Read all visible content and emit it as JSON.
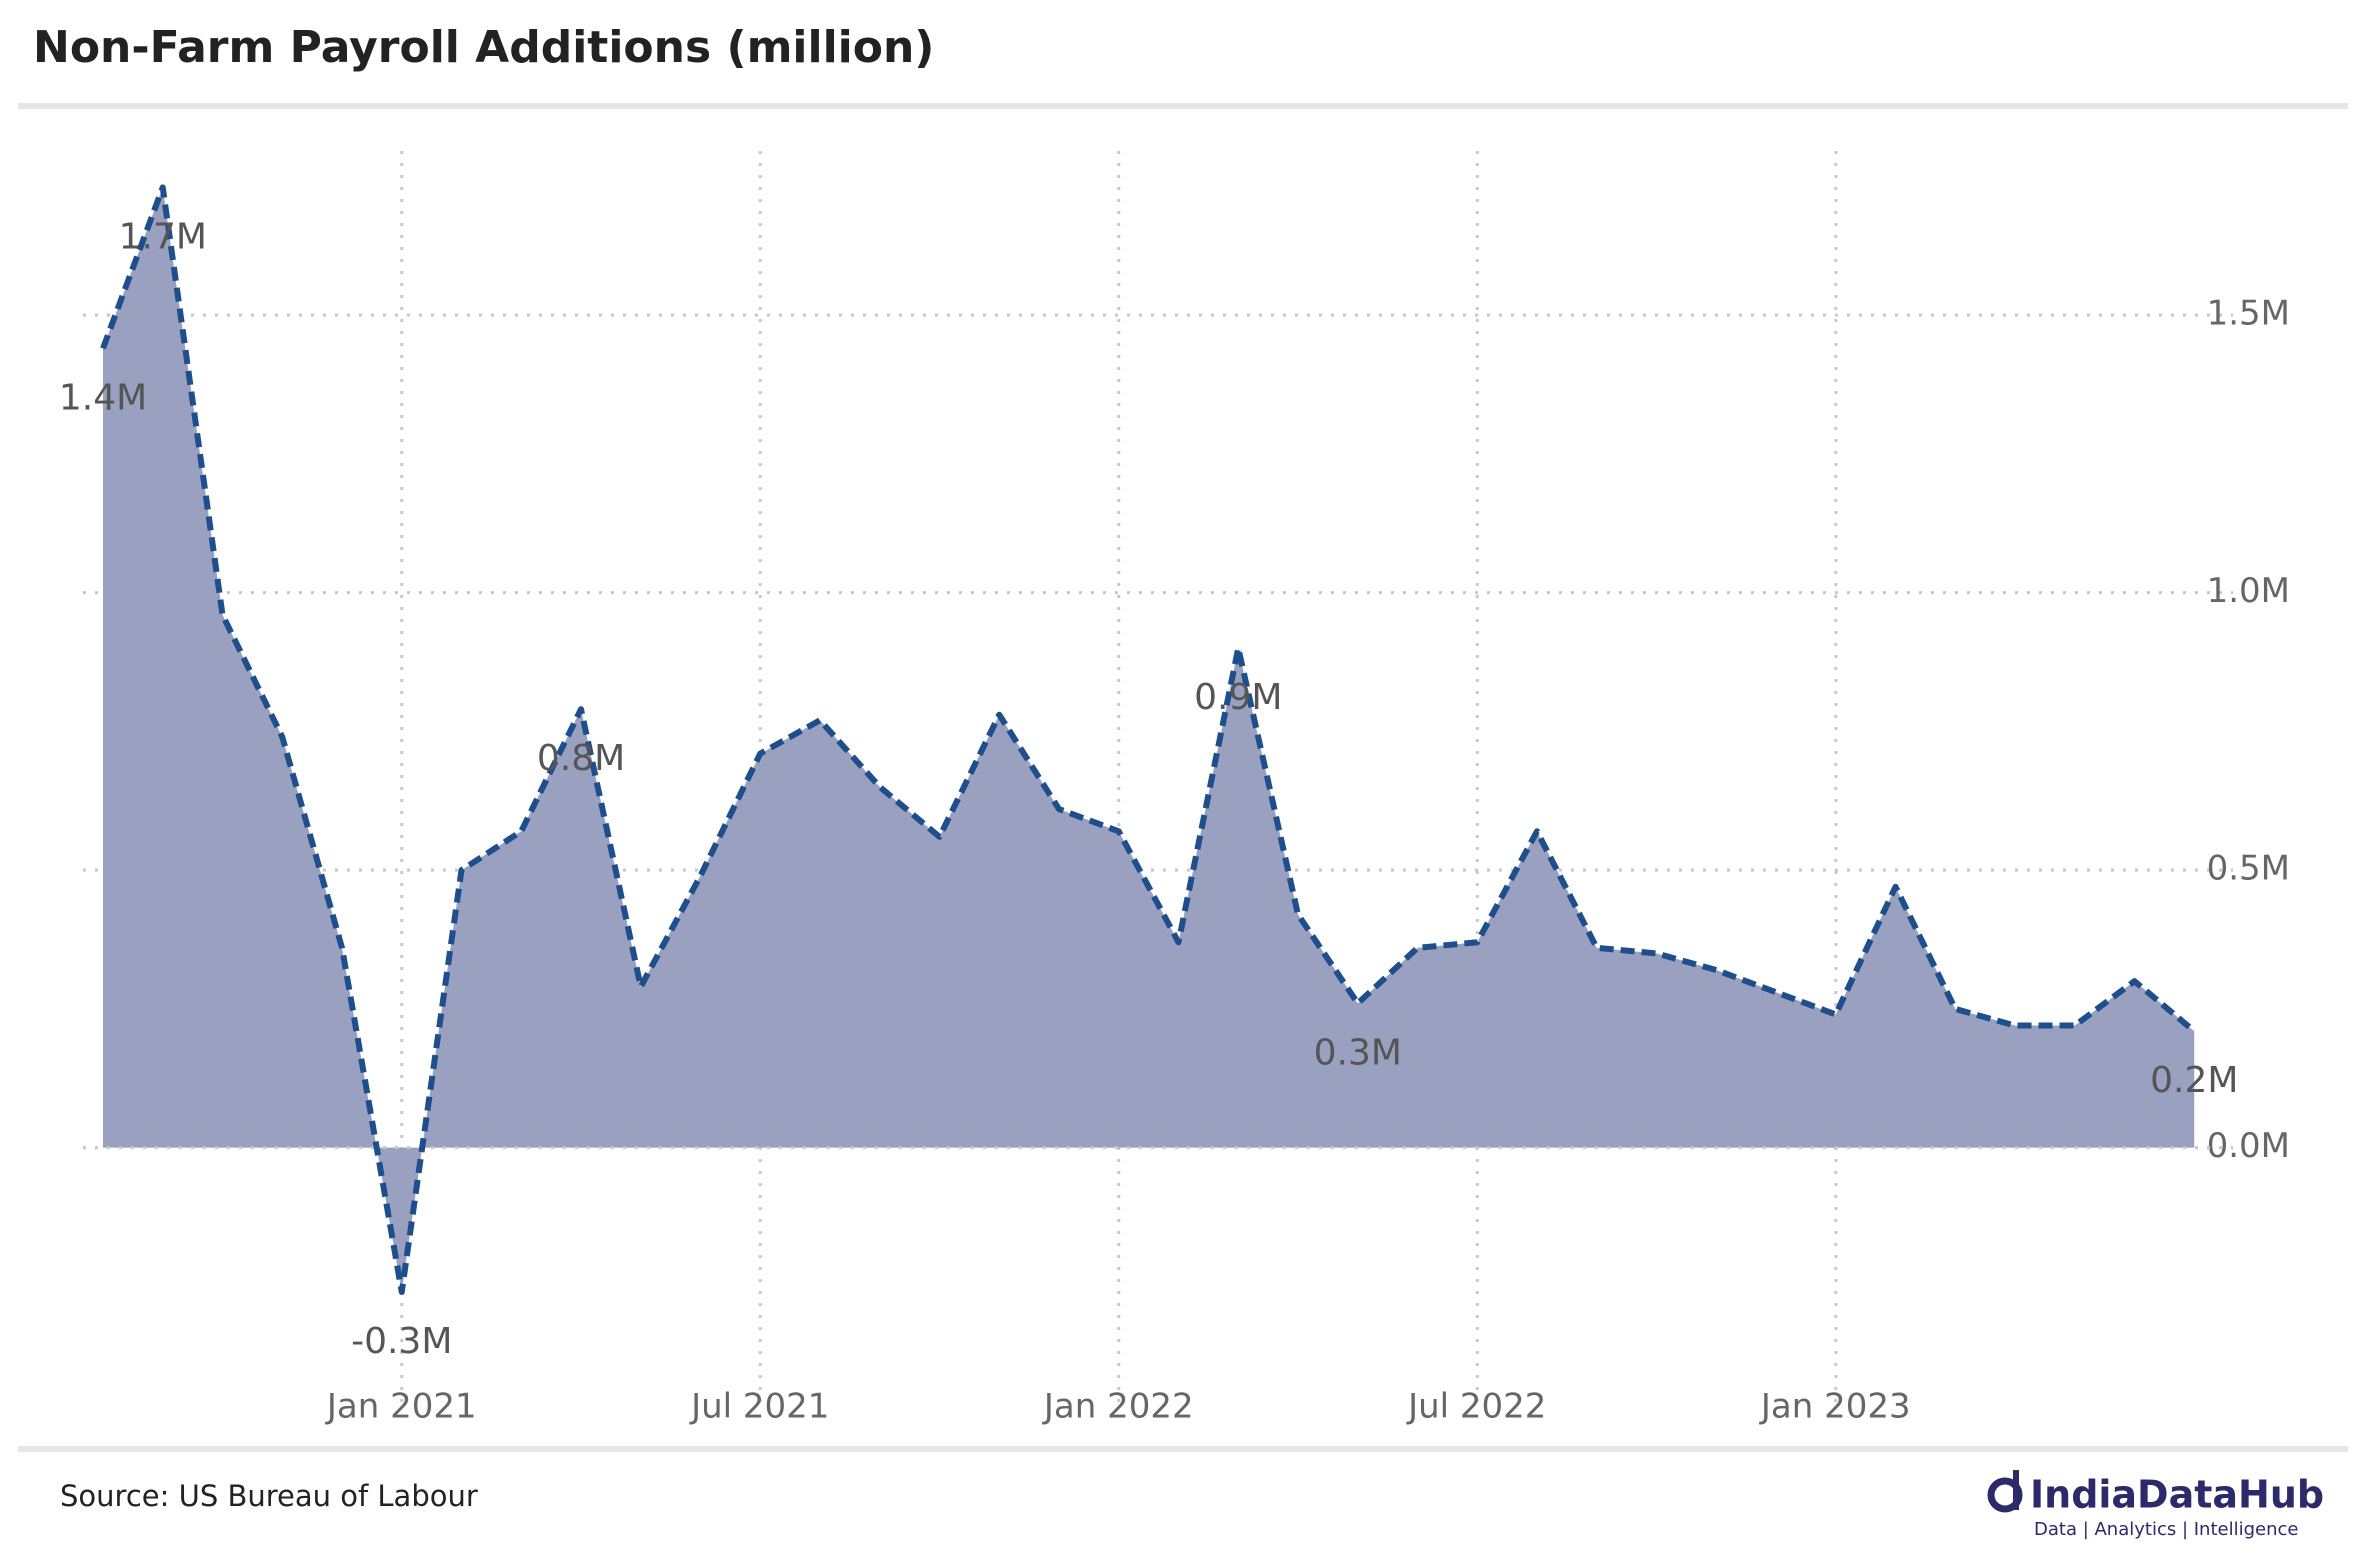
{
  "chart_data": {
    "type": "area",
    "title": "Non-Farm Payroll Additions (million)",
    "source": "Source: US Bureau of Labour",
    "logo": {
      "name": "IndiaDataHub",
      "tagline": "Data | Analytics | Intelligence"
    },
    "x": [
      "2020-08",
      "2020-09",
      "2020-10",
      "2020-11",
      "2020-12",
      "2021-01",
      "2021-02",
      "2021-03",
      "2021-04",
      "2021-05",
      "2021-06",
      "2021-07",
      "2021-08",
      "2021-09",
      "2021-10",
      "2021-11",
      "2021-12",
      "2022-01",
      "2022-02",
      "2022-03",
      "2022-04",
      "2022-05",
      "2022-06",
      "2022-07",
      "2022-08",
      "2022-09",
      "2022-10",
      "2022-11",
      "2022-12",
      "2023-01",
      "2023-02",
      "2023-03",
      "2023-04",
      "2023-05",
      "2023-06",
      "2023-07"
    ],
    "series": [
      {
        "name": "Non-Farm Payroll Additions",
        "color": "#1f4e8c",
        "fill": "#9aa0bf",
        "values": [
          1.44,
          1.73,
          0.96,
          0.74,
          0.36,
          -0.26,
          0.5,
          0.57,
          0.79,
          0.29,
          0.49,
          0.71,
          0.77,
          0.65,
          0.56,
          0.78,
          0.61,
          0.57,
          0.37,
          0.9,
          0.42,
          0.26,
          0.36,
          0.37,
          0.57,
          0.36,
          0.35,
          0.32,
          0.28,
          0.24,
          0.47,
          0.25,
          0.22,
          0.22,
          0.3,
          0.21
        ],
        "value_labels": [
          "1.4M",
          "1.7M",
          null,
          null,
          null,
          "-0.3M",
          null,
          null,
          "0.8M",
          null,
          null,
          null,
          null,
          null,
          null,
          null,
          null,
          null,
          null,
          "0.9M",
          null,
          "0.3M",
          null,
          null,
          null,
          null,
          null,
          null,
          null,
          null,
          null,
          null,
          null,
          null,
          null,
          "0.2M"
        ]
      }
    ],
    "xticks": [
      {
        "value": "2021-01",
        "label": "Jan 2021"
      },
      {
        "value": "2021-07",
        "label": "Jul 2021"
      },
      {
        "value": "2022-01",
        "label": "Jan 2022"
      },
      {
        "value": "2022-07",
        "label": "Jul 2022"
      },
      {
        "value": "2023-01",
        "label": "Jan 2023"
      }
    ],
    "ylim": [
      -0.46,
      1.81
    ],
    "yticks": [
      {
        "value": 0,
        "label": "0.0M"
      },
      {
        "value": 0.5,
        "label": "0.5M"
      },
      {
        "value": 1,
        "label": "1.0M"
      },
      {
        "value": 1.5,
        "label": "1.5M"
      }
    ],
    "grid": true
  }
}
